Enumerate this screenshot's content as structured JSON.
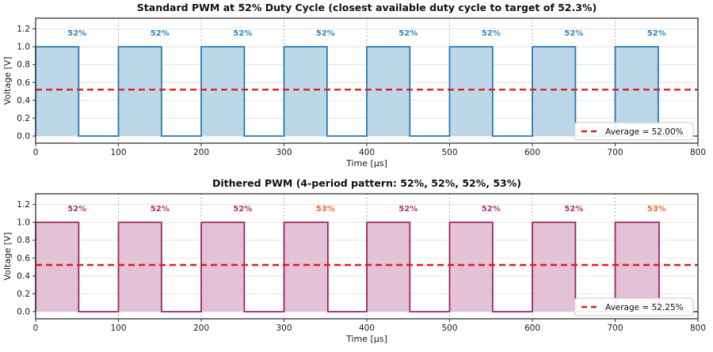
{
  "figure": {
    "background": "#ffffff"
  },
  "chart_data": [
    {
      "type": "line",
      "chart_kind": "pwm-square-wave",
      "title": "Standard PWM at 52% Duty Cycle (closest available duty cycle to target of 52.3%)",
      "xlabel": "Time [µs]",
      "ylabel": "Voltage [V]",
      "xlim": [
        0,
        800
      ],
      "ylim": [
        -0.08,
        1.32
      ],
      "xticks": [
        0,
        100,
        200,
        300,
        400,
        500,
        600,
        700,
        800
      ],
      "yticks": [
        0.0,
        0.2,
        0.4,
        0.6,
        0.8,
        1.0,
        1.2
      ],
      "grid": true,
      "period_us": 100,
      "high_v": 1.0,
      "low_v": 0.0,
      "duty_cycles_percent": [
        52,
        52,
        52,
        52,
        52,
        52,
        52,
        52
      ],
      "duty_labels": [
        "52%",
        "52%",
        "52%",
        "52%",
        "52%",
        "52%",
        "52%",
        "52%"
      ],
      "duty_label_colors": [
        "#2e86c1",
        "#2e86c1",
        "#2e86c1",
        "#2e86c1",
        "#2e86c1",
        "#2e86c1",
        "#2e86c1",
        "#2e86c1"
      ],
      "duty_label_y_v": 1.15,
      "average_v": 0.52,
      "legend": {
        "label": "Average = 52.00%",
        "position": "lower right"
      },
      "colors": {
        "line": "#2878b5",
        "fill": "#bcd8e8",
        "average_line": "#e41a1c"
      }
    },
    {
      "type": "line",
      "chart_kind": "pwm-square-wave",
      "title": "Dithered PWM (4-period pattern: 52%, 52%, 52%, 53%)",
      "xlabel": "Time [µs]",
      "ylabel": "Voltage [V]",
      "xlim": [
        0,
        800
      ],
      "ylim": [
        -0.08,
        1.32
      ],
      "xticks": [
        0,
        100,
        200,
        300,
        400,
        500,
        600,
        700,
        800
      ],
      "yticks": [
        0.0,
        0.2,
        0.4,
        0.6,
        0.8,
        1.0,
        1.2
      ],
      "grid": true,
      "period_us": 100,
      "high_v": 1.0,
      "low_v": 0.0,
      "duty_cycles_percent": [
        52,
        52,
        52,
        53,
        52,
        52,
        52,
        53
      ],
      "duty_labels": [
        "52%",
        "52%",
        "52%",
        "53%",
        "52%",
        "52%",
        "52%",
        "53%"
      ],
      "duty_label_colors": [
        "#ad3470",
        "#ad3470",
        "#ad3470",
        "#f2692f",
        "#ad3470",
        "#ad3470",
        "#ad3470",
        "#f2692f"
      ],
      "duty_label_y_v": 1.15,
      "average_v": 0.5225,
      "legend": {
        "label": "Average = 52.25%",
        "position": "lower right"
      },
      "colors": {
        "line": "#9e2563",
        "fill": "#e3c2d6",
        "average_line": "#e41a1c"
      }
    }
  ]
}
